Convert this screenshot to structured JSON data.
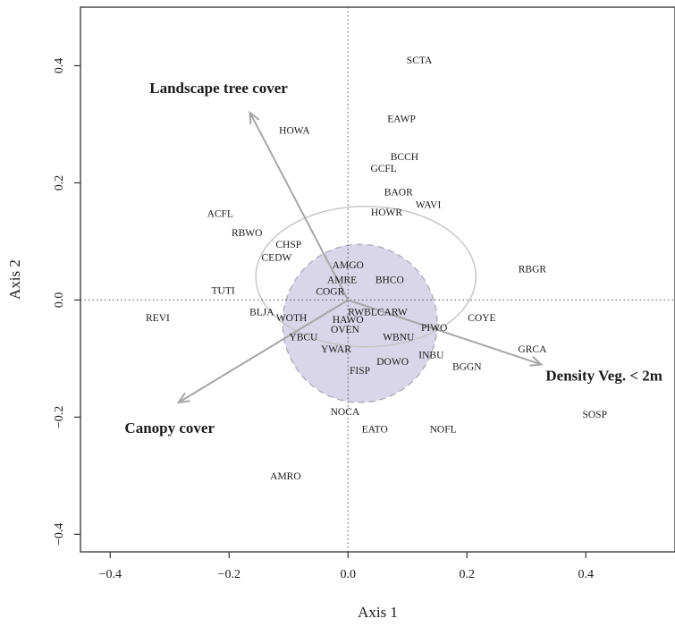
{
  "chart_data": {
    "type": "scatter",
    "title": "",
    "xlabel": "Axis 1",
    "ylabel": "Axis 2",
    "xlim": [
      -0.45,
      0.55
    ],
    "ylim": [
      -0.43,
      0.5
    ],
    "xticks": [
      -0.4,
      -0.2,
      0.0,
      0.2,
      0.4
    ],
    "yticks": [
      -0.4,
      -0.2,
      0.0,
      0.2,
      0.4
    ],
    "xtick_labels": [
      "−0.4",
      "−0.2",
      "0.0",
      "0.2",
      "0.4"
    ],
    "ytick_labels": [
      "−0.4",
      "−0.2",
      "0.0",
      "0.2",
      "0.4"
    ],
    "grid": false,
    "reference_lines": {
      "x": 0.0,
      "y": 0.0,
      "style": "dotted"
    },
    "species": [
      {
        "label": "SCTA",
        "x": 0.12,
        "y": 0.41
      },
      {
        "label": "EAWP",
        "x": 0.09,
        "y": 0.31
      },
      {
        "label": "HOWA",
        "x": -0.09,
        "y": 0.29
      },
      {
        "label": "BCCH",
        "x": 0.095,
        "y": 0.245
      },
      {
        "label": "GCFL",
        "x": 0.06,
        "y": 0.225
      },
      {
        "label": "BAOR",
        "x": 0.085,
        "y": 0.185
      },
      {
        "label": "WAVI",
        "x": 0.135,
        "y": 0.163
      },
      {
        "label": "HOWR",
        "x": 0.065,
        "y": 0.15
      },
      {
        "label": "ACFL",
        "x": -0.215,
        "y": 0.148
      },
      {
        "label": "RBWO",
        "x": -0.17,
        "y": 0.115
      },
      {
        "label": "CHSP",
        "x": -0.1,
        "y": 0.095
      },
      {
        "label": "CEDW",
        "x": -0.12,
        "y": 0.073
      },
      {
        "label": "AMGO",
        "x": 0.0,
        "y": 0.06
      },
      {
        "label": "RBGR",
        "x": 0.31,
        "y": 0.053
      },
      {
        "label": "AMRE",
        "x": -0.01,
        "y": 0.035
      },
      {
        "label": "BHCO",
        "x": 0.07,
        "y": 0.035
      },
      {
        "label": "TUTI",
        "x": -0.21,
        "y": 0.017
      },
      {
        "label": "COGR",
        "x": -0.03,
        "y": 0.015
      },
      {
        "label": "BLJA",
        "x": -0.145,
        "y": -0.02
      },
      {
        "label": "RWBLCARW",
        "x": 0.05,
        "y": -0.02
      },
      {
        "label": "REVI",
        "x": -0.32,
        "y": -0.03
      },
      {
        "label": "WOTH",
        "x": -0.095,
        "y": -0.03
      },
      {
        "label": "HAWO",
        "x": 0.0,
        "y": -0.033
      },
      {
        "label": "COYE",
        "x": 0.225,
        "y": -0.03
      },
      {
        "label": "OVEN",
        "x": -0.005,
        "y": -0.05
      },
      {
        "label": "PIWO",
        "x": 0.145,
        "y": -0.047
      },
      {
        "label": "YBCU",
        "x": -0.075,
        "y": -0.063
      },
      {
        "label": "WBNU",
        "x": 0.085,
        "y": -0.063
      },
      {
        "label": "YWAR",
        "x": -0.02,
        "y": -0.083
      },
      {
        "label": "GRCA",
        "x": 0.31,
        "y": -0.083
      },
      {
        "label": "INBU",
        "x": 0.14,
        "y": -0.093
      },
      {
        "label": "DOWO",
        "x": 0.075,
        "y": -0.105
      },
      {
        "label": "BGGN",
        "x": 0.2,
        "y": -0.113
      },
      {
        "label": "FISP",
        "x": 0.02,
        "y": -0.12
      },
      {
        "label": "NOCA",
        "x": -0.005,
        "y": -0.19
      },
      {
        "label": "SOSP",
        "x": 0.415,
        "y": -0.195
      },
      {
        "label": "EATO",
        "x": 0.045,
        "y": -0.22
      },
      {
        "label": "NOFL",
        "x": 0.16,
        "y": -0.22
      },
      {
        "label": "AMRO",
        "x": -0.105,
        "y": -0.3
      }
    ],
    "vectors": [
      {
        "label": "Landscape tree cover",
        "x": -0.165,
        "y": 0.32,
        "color": "#a6a6a6",
        "label_anchor": "top-left"
      },
      {
        "label": "Density Veg. < 2m",
        "x": 0.325,
        "y": -0.11,
        "color": "#a6a6a6",
        "label_anchor": "bottom-right"
      },
      {
        "label": "Canopy cover",
        "x": -0.285,
        "y": -0.175,
        "color": "#a6a6a6",
        "label_anchor": "bottom-left"
      }
    ],
    "ellipses": [
      {
        "name": "filled",
        "cx": 0.02,
        "cy": -0.04,
        "rx": 0.13,
        "ry": 0.135,
        "fill": "#d8d6e8",
        "stroke": "#b0aeb8",
        "dashed": true
      },
      {
        "name": "outline",
        "cx": 0.03,
        "cy": 0.04,
        "rx": 0.185,
        "ry": 0.12,
        "fill": "none",
        "stroke": "#c4c4c4",
        "dashed": false
      }
    ]
  }
}
